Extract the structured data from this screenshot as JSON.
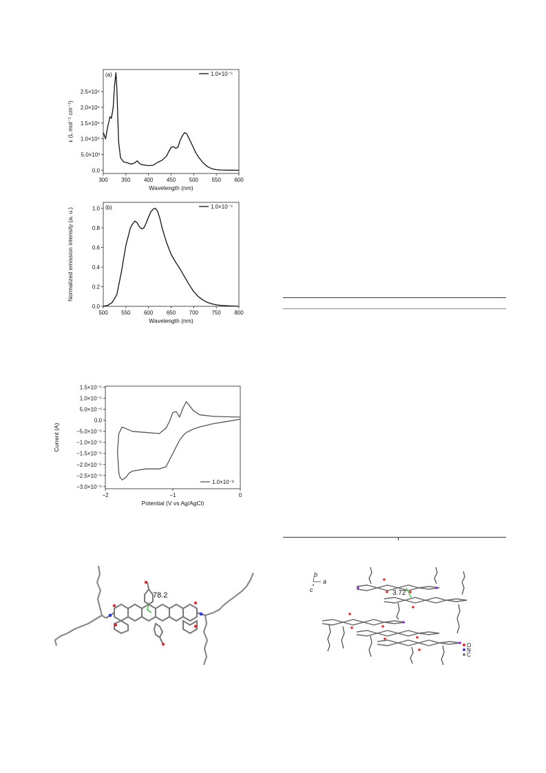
{
  "chart_data": [
    {
      "type": "line",
      "panel_label": "(a)",
      "xlabel": "Wavelength (nm)",
      "ylabel": "ε (L mol⁻¹ cm⁻¹)",
      "xlim": [
        300,
        600
      ],
      "ylim": [
        -1000,
        32000
      ],
      "x_ticks": [
        300,
        350,
        400,
        450,
        500,
        550,
        600
      ],
      "y_ticks": [
        {
          "v": 0,
          "label": "0.0"
        },
        {
          "v": 5000,
          "label": "5.0×10³"
        },
        {
          "v": 10000,
          "label": "1.0×10⁴"
        },
        {
          "v": 15000,
          "label": "1.5×10⁴"
        },
        {
          "v": 20000,
          "label": "2.0×10⁴"
        },
        {
          "v": 25000,
          "label": "2.5×10⁴"
        }
      ],
      "legend": "1.0×10⁻⁵",
      "legend_position": "top-right",
      "series": [
        {
          "x": [
            300,
            305,
            310,
            315,
            318,
            322,
            325,
            328,
            330,
            334,
            338,
            345,
            350,
            355,
            360,
            365,
            370,
            375,
            380,
            385,
            390,
            400,
            410,
            420,
            430,
            440,
            445,
            450,
            455,
            460,
            465,
            470,
            475,
            480,
            485,
            490,
            495,
            500,
            505,
            510,
            520,
            530,
            540,
            550,
            560,
            570,
            580,
            590,
            600
          ],
          "y": [
            12000,
            10000,
            14000,
            17000,
            16500,
            20000,
            27000,
            31000,
            26000,
            9000,
            4000,
            2700,
            2500,
            2300,
            2000,
            2100,
            2400,
            3000,
            2200,
            1800,
            1700,
            1500,
            1600,
            2500,
            3200,
            4500,
            6000,
            7300,
            7500,
            7000,
            7300,
            9500,
            11000,
            12000,
            11500,
            10000,
            8500,
            7000,
            5500,
            4300,
            2500,
            1200,
            500,
            200,
            100,
            60,
            30,
            20,
            10
          ]
        }
      ]
    },
    {
      "type": "line",
      "panel_label": "(b)",
      "xlabel": "Wavelength (nm)",
      "ylabel": "Normalized emission intensity (a. u.)",
      "xlim": [
        500,
        800
      ],
      "ylim": [
        0,
        1.06
      ],
      "x_ticks": [
        500,
        550,
        600,
        650,
        700,
        750,
        800
      ],
      "y_ticks": [
        {
          "v": 0,
          "label": "0.0"
        },
        {
          "v": 0.2,
          "label": "0.2"
        },
        {
          "v": 0.4,
          "label": "0.4"
        },
        {
          "v": 0.6,
          "label": "0.6"
        },
        {
          "v": 0.8,
          "label": "0.8"
        },
        {
          "v": 1.0,
          "label": "1.0"
        }
      ],
      "legend": "1.0×10⁻⁵",
      "legend_position": "top-right",
      "series": [
        {
          "x": [
            500,
            510,
            520,
            530,
            540,
            550,
            560,
            565,
            570,
            575,
            580,
            585,
            590,
            595,
            600,
            605,
            610,
            615,
            620,
            625,
            630,
            640,
            650,
            660,
            670,
            680,
            690,
            700,
            710,
            720,
            730,
            740,
            750,
            760,
            780,
            800
          ],
          "y": [
            0,
            0.01,
            0.04,
            0.12,
            0.35,
            0.62,
            0.8,
            0.84,
            0.87,
            0.85,
            0.81,
            0.79,
            0.8,
            0.85,
            0.91,
            0.96,
            0.99,
            1.0,
            0.97,
            0.9,
            0.8,
            0.65,
            0.53,
            0.45,
            0.38,
            0.3,
            0.22,
            0.15,
            0.1,
            0.065,
            0.04,
            0.025,
            0.015,
            0.01,
            0.004,
            0
          ]
        }
      ]
    },
    {
      "type": "line",
      "panel_label": "",
      "xlabel": "Potential (V vs Ag/AgCl)",
      "ylabel": "Current (A)",
      "xlim": [
        -2,
        0
      ],
      "ylim": [
        -3.1e-05,
        1.55e-05
      ],
      "x_ticks": [
        {
          "v": -2,
          "label": "−2"
        },
        {
          "v": -1,
          "label": "−1"
        },
        {
          "v": 0,
          "label": "0"
        }
      ],
      "y_ticks": [
        {
          "v": 1.5e-05,
          "label": "1.5×10⁻⁵"
        },
        {
          "v": 1e-05,
          "label": "1.0×10⁻⁵"
        },
        {
          "v": 5e-06,
          "label": "5.0×10⁻⁶"
        },
        {
          "v": 0,
          "label": "0.0"
        },
        {
          "v": -5e-06,
          "label": "−5.0×10⁻⁶"
        },
        {
          "v": -1e-05,
          "label": "−1.0×10⁻⁵"
        },
        {
          "v": -1.5e-05,
          "label": "−1.5×10⁻⁵"
        },
        {
          "v": -2e-05,
          "label": "−2.0×10⁻⁵"
        },
        {
          "v": -2.5e-05,
          "label": "−2.5×10⁻⁵"
        },
        {
          "v": -3e-05,
          "label": "−3.0×10⁻⁵"
        }
      ],
      "legend": "1.0×10⁻³",
      "legend_position": "bottom-right",
      "series": [
        {
          "x": [
            0,
            -0.2,
            -0.4,
            -0.6,
            -0.7,
            -0.8,
            -0.85,
            -0.9,
            -0.95,
            -1.0,
            -1.05,
            -1.1,
            -1.2,
            -1.4,
            -1.6,
            -1.65,
            -1.7,
            -1.75,
            -1.78,
            -1.8,
            -1.82,
            -1.8,
            -1.75,
            -1.6,
            -1.4,
            -1.2,
            -1.1,
            -1.05,
            -1.0,
            -0.95,
            -0.9,
            -0.85,
            -0.8,
            -0.7,
            -0.6,
            -0.4,
            -0.2,
            0
          ],
          "y": [
            5e-07,
            -5e-07,
            -1.5e-06,
            -3e-06,
            -4e-06,
            -5.5e-06,
            -7e-06,
            -9e-06,
            -1.2e-05,
            -1.5e-05,
            -1.8e-05,
            -2.1e-05,
            -2.2e-05,
            -2.2e-05,
            -2.3e-05,
            -2.4e-05,
            -2.6e-05,
            -2.7e-05,
            -2.6e-05,
            -2.4e-05,
            -1.4e-05,
            -6e-06,
            -3e-06,
            -5e-06,
            -5.5e-06,
            -6e-06,
            -3.5e-06,
            -5e-07,
            3.5e-06,
            4e-06,
            1.5e-06,
            5.5e-06,
            8.5e-06,
            4.5e-06,
            2.5e-06,
            1.8e-06,
            1.6e-06,
            1.5e-06
          ]
        }
      ]
    }
  ],
  "crystal_left": {
    "angle_label": "78.2"
  },
  "crystal_right": {
    "axis_b": "b",
    "axis_a": "a",
    "axis_c": "c",
    "distance_label": "3.72",
    "legend": [
      {
        "label": "O",
        "color": "#d62f2f"
      },
      {
        "label": "N",
        "color": "#2f3fd6"
      },
      {
        "label": "C",
        "color": "#777777"
      }
    ]
  },
  "colors": {
    "line": "#111111",
    "cv_line": "#555555",
    "angle_line": "#3cba3c",
    "skeleton": "#8a8a8a"
  }
}
